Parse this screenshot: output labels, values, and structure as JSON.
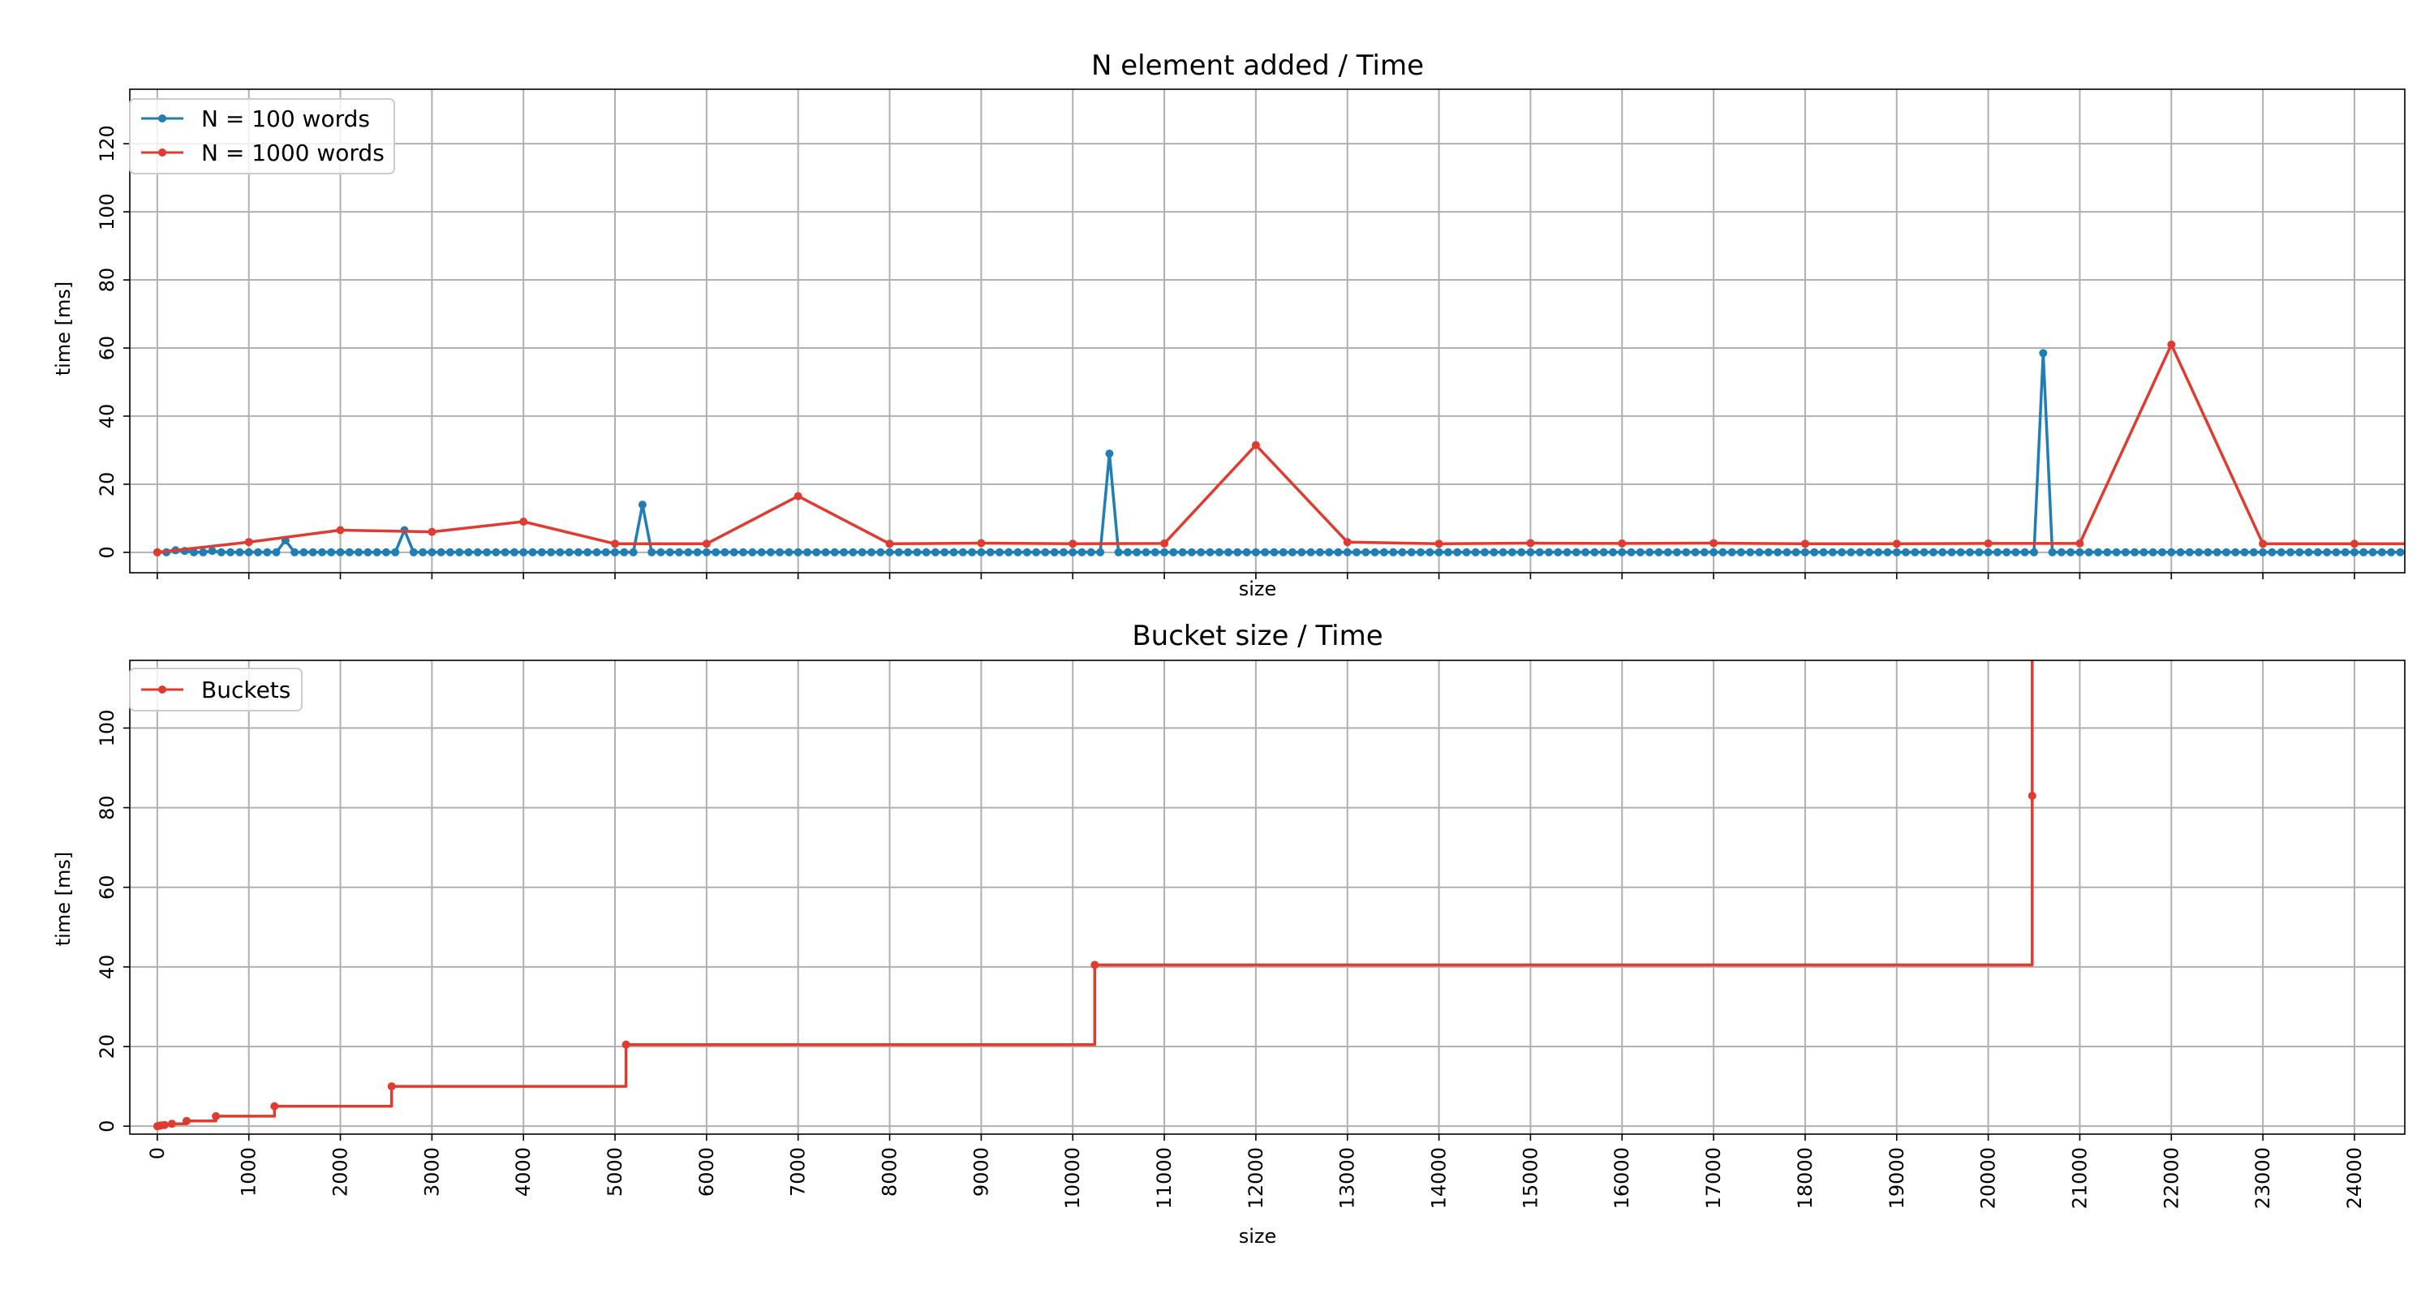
{
  "colors": {
    "blue": "#1f7eb4",
    "red": "#e03b30",
    "grid": "#b0b0b0"
  },
  "chart_data": [
    {
      "type": "line",
      "title": "N element added / Time",
      "xlabel": "size",
      "ylabel": "time [ms]",
      "xlim": [
        -300,
        24550
      ],
      "ylim": [
        -6,
        136
      ],
      "grid": true,
      "legend": "top-left",
      "xticks": [
        0,
        1000,
        2000,
        3000,
        4000,
        5000,
        6000,
        7000,
        8000,
        9000,
        10000,
        11000,
        12000,
        13000,
        14000,
        15000,
        16000,
        17000,
        18000,
        19000,
        20000,
        21000,
        22000,
        23000,
        24000
      ],
      "xtick_labels_visible": false,
      "yticks": [
        "0",
        "20",
        "40",
        "60",
        "80",
        "100",
        "120"
      ],
      "series": [
        {
          "name": "N = 100 words",
          "color": "#1f7eb4",
          "step": 100,
          "spikes": [
            [
              200,
              0.6
            ],
            [
              300,
              0.4
            ],
            [
              600,
              0.4
            ],
            [
              1400,
              3.5
            ],
            [
              2700,
              6.5
            ],
            [
              5300,
              14
            ],
            [
              10400,
              29
            ],
            [
              20600,
              58.5
            ]
          ],
          "x_end": 24600,
          "baseline": 0
        },
        {
          "name": "N = 1000 words",
          "color": "#e03b30",
          "x": [
            0,
            1000,
            2000,
            3000,
            4000,
            5000,
            6000,
            7000,
            8000,
            9000,
            10000,
            11000,
            12000,
            13000,
            14000,
            15000,
            16000,
            17000,
            18000,
            19000,
            20000,
            21000,
            22000,
            23000,
            24000,
            24550
          ],
          "y": [
            0,
            3,
            6.5,
            6,
            9,
            2.5,
            2.5,
            16.5,
            2.5,
            2.7,
            2.5,
            2.6,
            31.5,
            3,
            2.5,
            2.7,
            2.6,
            2.7,
            2.5,
            2.5,
            2.6,
            2.6,
            61,
            2.5,
            2.5,
            2.5
          ],
          "marker_count": 25
        }
      ]
    },
    {
      "type": "line",
      "title": "Bucket size / Time",
      "xlabel": "size",
      "ylabel": "time [ms]",
      "xlim": [
        -300,
        24550
      ],
      "ylim": [
        -2,
        117
      ],
      "grid": true,
      "legend": "top-left",
      "xticks": [
        "0",
        "1000",
        "2000",
        "3000",
        "4000",
        "5000",
        "6000",
        "7000",
        "8000",
        "9000",
        "10000",
        "11000",
        "12000",
        "13000",
        "14000",
        "15000",
        "16000",
        "17000",
        "18000",
        "19000",
        "20000",
        "21000",
        "22000",
        "23000",
        "24000"
      ],
      "yticks": [
        "0",
        "20",
        "40",
        "60",
        "80",
        "100"
      ],
      "series": [
        {
          "name": "Buckets",
          "color": "#e03b30",
          "drawstyle": "steps-post",
          "x": [
            0,
            20,
            40,
            80,
            160,
            320,
            640,
            1280,
            2560,
            5120,
            10240,
            20480
          ],
          "y": [
            0,
            0.1,
            0.2,
            0.3,
            0.6,
            1.3,
            2.5,
            5,
            10,
            20.5,
            40.5,
            83
          ],
          "continues_to": [
            20480,
            117
          ]
        }
      ]
    }
  ]
}
